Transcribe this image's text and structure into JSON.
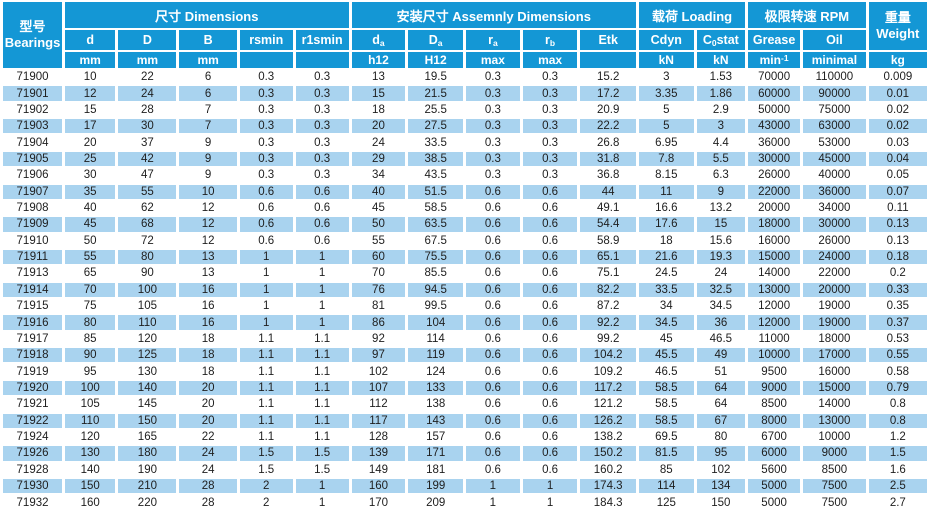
{
  "table": {
    "groups": {
      "bearings": {
        "zh": "型号",
        "en": "Bearings"
      },
      "dimensions": "尺寸 Dimensions",
      "assembly": "安装尺寸 Assemnly Dimensions",
      "loading": "载荷 Loading",
      "rpm": "极限转速 RPM",
      "weight": {
        "zh": "重量",
        "en": "Weight"
      }
    },
    "columns": {
      "d": "d",
      "D": "D",
      "B": "B",
      "rsmin": "rsmin",
      "r1smin": "r1smin",
      "da": {
        "base": "d",
        "sub": "a"
      },
      "Da": {
        "base": "D",
        "sub": "a"
      },
      "ra": {
        "base": "r",
        "sub": "a"
      },
      "rb": {
        "base": "r",
        "sub": "b"
      },
      "etk": "Etk",
      "cdyn": "Cdyn",
      "c0stat": {
        "pre": "C",
        "sub": "0",
        "post": "stat"
      },
      "grease": "Grease",
      "oil": "Oil"
    },
    "units": {
      "d": "mm",
      "D": "mm",
      "B": "mm",
      "rsmin": "",
      "r1smin": "",
      "da": "h12",
      "Da": "H12",
      "ra": "max",
      "rb": "max",
      "etk": "",
      "cdyn": "kN",
      "c0stat": "kN",
      "grease": {
        "base": "min",
        "sup": "-1"
      },
      "oil": "minimal",
      "weight": "kg"
    },
    "rows": [
      [
        "71900",
        10,
        22,
        6,
        0.3,
        0.3,
        13,
        19.5,
        0.3,
        0.3,
        15.2,
        3,
        1.53,
        70000,
        110000,
        0.009
      ],
      [
        "71901",
        12,
        24,
        6,
        0.3,
        0.3,
        15,
        21.5,
        0.3,
        0.3,
        17.2,
        3.35,
        1.86,
        60000,
        90000,
        0.01
      ],
      [
        "71902",
        15,
        28,
        7,
        0.3,
        0.3,
        18,
        25.5,
        0.3,
        0.3,
        20.9,
        5,
        2.9,
        50000,
        75000,
        0.02
      ],
      [
        "71903",
        17,
        30,
        7,
        0.3,
        0.3,
        20,
        27.5,
        0.3,
        0.3,
        22.2,
        5,
        3,
        43000,
        63000,
        0.02
      ],
      [
        "71904",
        20,
        37,
        9,
        0.3,
        0.3,
        24,
        33.5,
        0.3,
        0.3,
        26.8,
        6.95,
        4.4,
        36000,
        53000,
        0.03
      ],
      [
        "71905",
        25,
        42,
        9,
        0.3,
        0.3,
        29,
        38.5,
        0.3,
        0.3,
        31.8,
        7.8,
        5.5,
        30000,
        45000,
        0.04
      ],
      [
        "71906",
        30,
        47,
        9,
        0.3,
        0.3,
        34,
        43.5,
        0.3,
        0.3,
        36.8,
        8.15,
        6.3,
        26000,
        40000,
        0.05
      ],
      [
        "71907",
        35,
        55,
        10,
        0.6,
        0.6,
        40,
        51.5,
        0.6,
        0.6,
        44,
        11,
        9,
        22000,
        36000,
        0.07
      ],
      [
        "71908",
        40,
        62,
        12,
        0.6,
        0.6,
        45,
        58.5,
        0.6,
        0.6,
        49.1,
        16.6,
        13.2,
        20000,
        34000,
        0.11
      ],
      [
        "71909",
        45,
        68,
        12,
        0.6,
        0.6,
        50,
        63.5,
        0.6,
        0.6,
        54.4,
        17.6,
        15,
        18000,
        30000,
        0.13
      ],
      [
        "71910",
        50,
        72,
        12,
        0.6,
        0.6,
        55,
        67.5,
        0.6,
        0.6,
        58.9,
        18,
        15.6,
        16000,
        26000,
        0.13
      ],
      [
        "71911",
        55,
        80,
        13,
        1,
        1,
        60,
        75.5,
        0.6,
        0.6,
        65.1,
        21.6,
        19.3,
        15000,
        24000,
        0.18
      ],
      [
        "71913",
        65,
        90,
        13,
        1,
        1,
        70,
        85.5,
        0.6,
        0.6,
        75.1,
        24.5,
        24,
        14000,
        22000,
        0.2
      ],
      [
        "71914",
        70,
        100,
        16,
        1,
        1,
        76,
        94.5,
        0.6,
        0.6,
        82.2,
        33.5,
        32.5,
        13000,
        20000,
        0.33
      ],
      [
        "71915",
        75,
        105,
        16,
        1,
        1,
        81,
        99.5,
        0.6,
        0.6,
        87.2,
        34,
        34.5,
        12000,
        19000,
        0.35
      ],
      [
        "71916",
        80,
        110,
        16,
        1,
        1,
        86,
        104,
        0.6,
        0.6,
        92.2,
        34.5,
        36,
        12000,
        19000,
        0.37
      ],
      [
        "71917",
        85,
        120,
        18,
        1.1,
        1.1,
        92,
        114,
        0.6,
        0.6,
        99.2,
        45,
        46.5,
        11000,
        18000,
        0.53
      ],
      [
        "71918",
        90,
        125,
        18,
        1.1,
        1.1,
        97,
        119,
        0.6,
        0.6,
        104.2,
        45.5,
        49,
        10000,
        17000,
        0.55
      ],
      [
        "71919",
        95,
        130,
        18,
        1.1,
        1.1,
        102,
        124,
        0.6,
        0.6,
        109.2,
        46.5,
        51,
        9500,
        16000,
        0.58
      ],
      [
        "71920",
        100,
        140,
        20,
        1.1,
        1.1,
        107,
        133,
        0.6,
        0.6,
        117.2,
        58.5,
        64,
        9000,
        15000,
        0.79
      ],
      [
        "71921",
        105,
        145,
        20,
        1.1,
        1.1,
        112,
        138,
        0.6,
        0.6,
        121.2,
        58.5,
        64,
        8500,
        14000,
        0.8
      ],
      [
        "71922",
        110,
        150,
        20,
        1.1,
        1.1,
        117,
        143,
        0.6,
        0.6,
        126.2,
        58.5,
        67,
        8000,
        13000,
        0.8
      ],
      [
        "71924",
        120,
        165,
        22,
        1.1,
        1.1,
        128,
        157,
        0.6,
        0.6,
        138.2,
        69.5,
        80,
        6700,
        10000,
        1.2
      ],
      [
        "71926",
        130,
        180,
        24,
        1.5,
        1.5,
        139,
        171,
        0.6,
        0.6,
        150.2,
        81.5,
        95,
        6000,
        9000,
        1.5
      ],
      [
        "71928",
        140,
        190,
        24,
        1.5,
        1.5,
        149,
        181,
        0.6,
        0.6,
        160.2,
        85,
        102,
        5600,
        8500,
        1.6
      ],
      [
        "71930",
        150,
        210,
        28,
        2,
        1,
        160,
        199,
        1,
        1,
        174.3,
        114,
        134,
        5000,
        7500,
        2.5
      ],
      [
        "71932",
        160,
        220,
        28,
        2,
        1,
        170,
        209,
        1,
        1,
        184.3,
        125,
        150,
        5000,
        7500,
        2.7
      ]
    ]
  },
  "colors": {
    "header_blue": "#1497d5",
    "stripe_blue": "#a9d3ef",
    "header_text": "#ffffff",
    "body_text": "#1e1e1e"
  }
}
